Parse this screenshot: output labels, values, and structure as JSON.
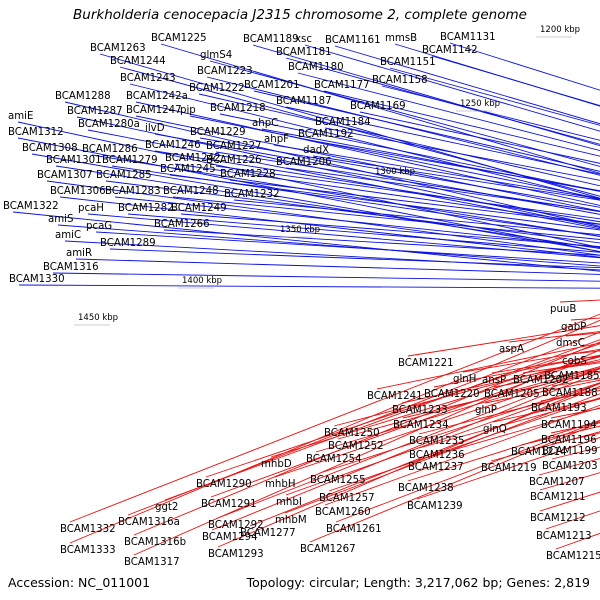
{
  "header": {
    "title": "Burkholderia cenocepacia J2315 chromosome 2, complete genome"
  },
  "footer": {
    "accession": "Accession: NC_011001",
    "summary": "Topology: circular; Length: 3,217,062 bp; Genes: 2,819"
  },
  "colors": {
    "forward_gene": "#0a10e0",
    "reverse_gene": "#e81010",
    "backbone": "#808080",
    "tick": "#2a8a2a",
    "label": "#000000"
  },
  "scale_ticks": [
    {
      "label": "1200 kbp"
    },
    {
      "label": "1250 kbp"
    },
    {
      "label": "1300 kbp"
    },
    {
      "label": "1350 kbp"
    },
    {
      "label": "1400 kbp"
    },
    {
      "label": "1450 kbp"
    }
  ],
  "forward_labels": [
    "BCAM1263",
    "BCAM1225",
    "glmS4",
    "BCAM1244",
    "BCAM1223",
    "BCAM1243",
    "BCAM1222",
    "BCAM1242a",
    "BCAM1288",
    "BCAM1247",
    "pip",
    "BCAM1287",
    "BCAM1218",
    "amiE",
    "BCAM1280a",
    "ilvD",
    "BCAM1229",
    "BCAM1312",
    "BCAM1286",
    "BCAM1246",
    "BCAM1227",
    "BCAM1308",
    "BCAM1279",
    "BCAM1242",
    "BCAM1226",
    "BCAM1301",
    "BCAM1245",
    "BCAM1228",
    "BCAM1307",
    "BCAM1285",
    "BCAM1306",
    "BCAM1283",
    "BCAM1248",
    "BCAM1232",
    "BCAM1322",
    "pcaH",
    "BCAM1282",
    "BCAM1249",
    "amiS",
    "pcaG",
    "BCAM1266",
    "amiC",
    "BCAM1289",
    "amiR",
    "BCAM1316",
    "BCAM1330",
    "BCAM1189",
    "xsc",
    "BCAM1161",
    "mmsB",
    "BCAM1131",
    "BCAM1181",
    "BCAM1142",
    "BCAM1180",
    "BCAM1151",
    "BCAM1201",
    "BCAM1177",
    "BCAM1158",
    "BCAM1187",
    "BCAM1169",
    "ahpC",
    "BCAM1184",
    "ahpF",
    "BCAM1192",
    "dadX",
    "BCAM1206"
  ],
  "reverse_labels": [
    "puuB",
    "gabP",
    "dmsC",
    "aspA",
    "cobS",
    "BCAM1221",
    "BCAM1185",
    "glnH",
    "ansP",
    "BCAM1202",
    "BCAM1188",
    "BCAM1220",
    "BCAM1205",
    "BCAM1241",
    "BCAM1233",
    "BCAM1193",
    "glnP",
    "BCAM1234",
    "BCAM1194",
    "glnQ",
    "BCAM1250",
    "BCAM1235",
    "BCAM1196",
    "BCAM1214",
    "BCAM1199",
    "BCAM1252",
    "BCAM1236",
    "BCAM1254",
    "BCAM1237",
    "BCAM1219",
    "BCAM1203",
    "mhbD",
    "BCAM1255",
    "BCAM1207",
    "BCAM1290",
    "mhbH",
    "BCAM1238",
    "BCAM1211",
    "BCAM1257",
    "BCAM1291",
    "mhbI",
    "BCAM1239",
    "ggt2",
    "BCAM1260",
    "BCAM1212",
    "mhbM",
    "BCAM1292",
    "BCAM1316a",
    "BCAM1261",
    "BCAM1277",
    "BCAM1332",
    "BCAM1294",
    "BCAM1213",
    "BCAM1316b",
    "BCAM1267",
    "BCAM1333",
    "BCAM1293",
    "BCAM1215",
    "BCAM1317"
  ]
}
